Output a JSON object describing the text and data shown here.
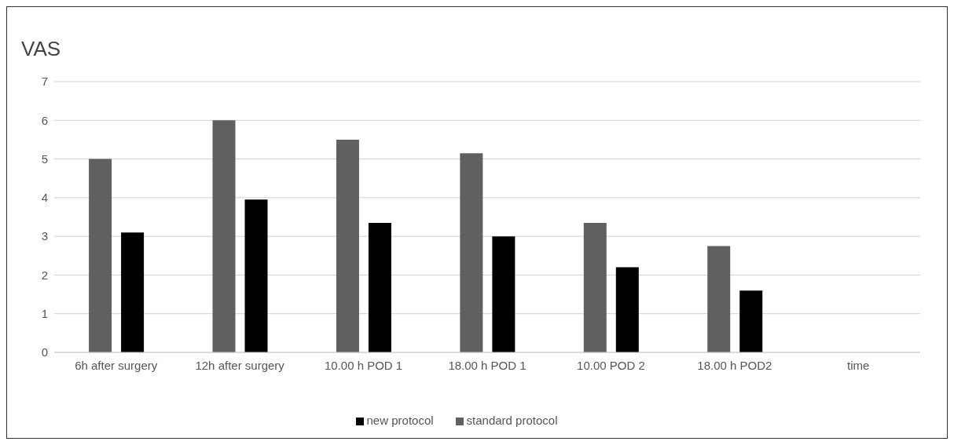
{
  "chart_data": {
    "type": "bar",
    "title": "VAS",
    "categories": [
      "6h after surgery",
      "12h after surgery",
      "10.00 h POD 1",
      "18.00 h POD 1",
      "10.00 POD 2",
      "18.00 h POD2",
      "time"
    ],
    "series": [
      {
        "name": "standard protocol",
        "color": "#606060",
        "values": [
          5.0,
          6.0,
          5.5,
          5.15,
          3.35,
          2.75,
          null
        ]
      },
      {
        "name": "new protocol",
        "color": "#000000",
        "values": [
          3.1,
          3.95,
          3.35,
          3.0,
          2.2,
          1.6,
          null
        ]
      }
    ],
    "ylim": [
      0,
      7
    ],
    "yticks": [
      0,
      1,
      2,
      3,
      4,
      5,
      6,
      7
    ],
    "grid": "y",
    "legend": "bottom"
  }
}
